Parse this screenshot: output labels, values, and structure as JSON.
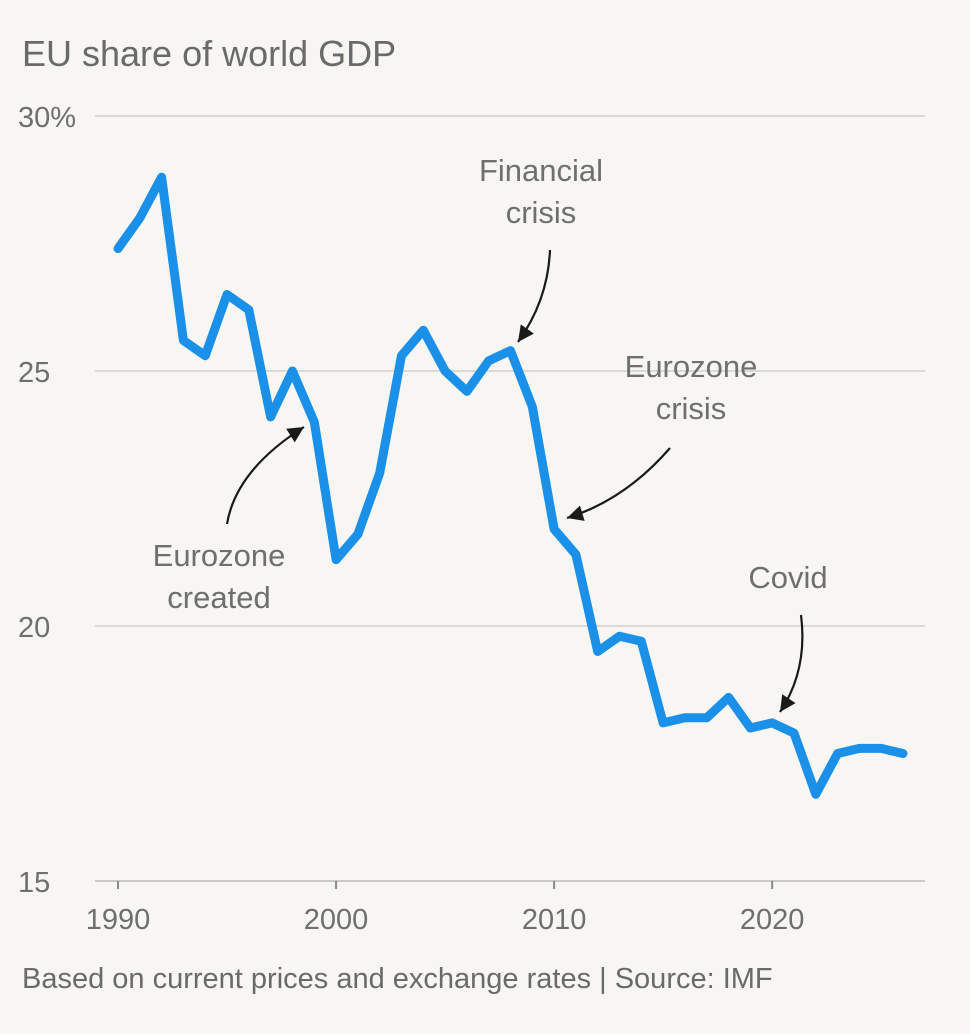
{
  "chart_data": {
    "type": "line",
    "title": "EU share of world GDP",
    "xlabel": "",
    "ylabel": "",
    "xlim": [
      1990,
      2026
    ],
    "ylim": [
      15,
      30
    ],
    "y_ticks": [
      {
        "value": 30,
        "label": "30%"
      },
      {
        "value": 25,
        "label": "25"
      },
      {
        "value": 20,
        "label": "20"
      },
      {
        "value": 15,
        "label": "15"
      }
    ],
    "x_ticks": [
      {
        "value": 1990,
        "label": "1990"
      },
      {
        "value": 2000,
        "label": "2000"
      },
      {
        "value": 2010,
        "label": "2010"
      },
      {
        "value": 2020,
        "label": "2020"
      }
    ],
    "series": [
      {
        "name": "EU share of world GDP",
        "color": "#1a90e8",
        "x": [
          1990,
          1991,
          1992,
          1993,
          1994,
          1995,
          1996,
          1997,
          1998,
          1999,
          2000,
          2001,
          2002,
          2003,
          2004,
          2005,
          2006,
          2007,
          2008,
          2009,
          2010,
          2011,
          2012,
          2013,
          2014,
          2015,
          2016,
          2017,
          2018,
          2019,
          2020,
          2021,
          2022,
          2023,
          2024,
          2025,
          2026
        ],
        "values": [
          27.4,
          28.0,
          28.8,
          25.6,
          25.3,
          26.5,
          26.2,
          24.1,
          25.0,
          24.0,
          21.3,
          21.8,
          23.0,
          25.3,
          25.8,
          25.0,
          24.6,
          25.2,
          25.4,
          24.3,
          21.9,
          21.4,
          19.5,
          19.8,
          19.7,
          18.1,
          18.2,
          18.2,
          18.6,
          18.0,
          18.1,
          17.9,
          16.7,
          17.5,
          17.6,
          17.6,
          17.5
        ]
      }
    ],
    "annotations": [
      {
        "lines": [
          "Financial",
          "crisis"
        ],
        "x": 2008,
        "y": 25.4
      },
      {
        "lines": [
          "Eurozone",
          "crisis"
        ],
        "x": 2010,
        "y": 22.1
      },
      {
        "lines": [
          "Eurozone",
          "created"
        ],
        "x": 1999,
        "y": 23.9
      },
      {
        "lines": [
          "Covid"
        ],
        "x": 2020,
        "y": 18.1
      }
    ],
    "source": "Based on current prices and exchange rates | Source: IMF"
  }
}
